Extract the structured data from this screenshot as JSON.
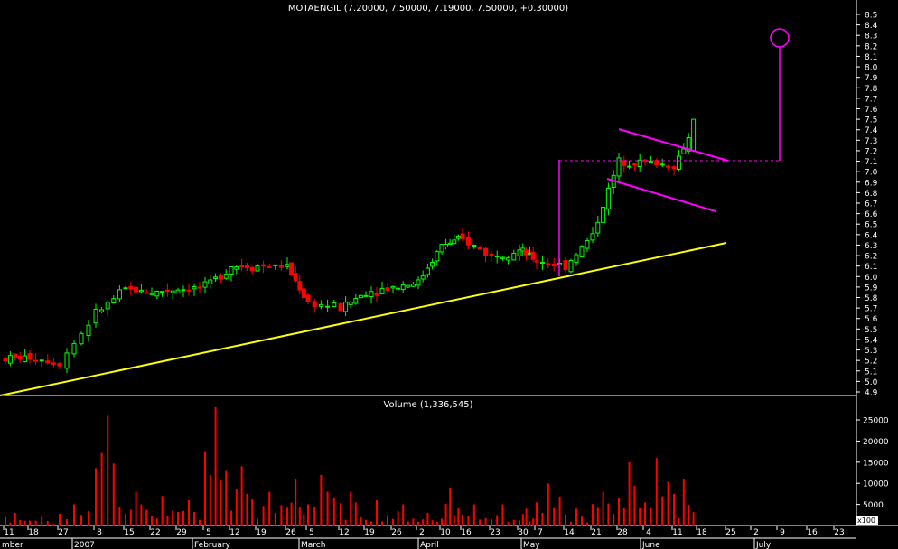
{
  "price_panel": {
    "title": "MOTAENGIL (7.20000, 7.50000, 7.19000, 7.50000, +0.30000)",
    "y_ticks": [
      "4.9",
      "5.0",
      "5.1",
      "5.2",
      "5.3",
      "5.4",
      "5.5",
      "5.6",
      "5.7",
      "5.8",
      "5.9",
      "6.0",
      "6.1",
      "6.2",
      "6.3",
      "6.4",
      "6.5",
      "6.6",
      "6.7",
      "6.8",
      "6.9",
      "7.0",
      "7.1",
      "7.2",
      "7.3",
      "7.4",
      "7.5",
      "7.6",
      "7.7",
      "7.8",
      "7.9",
      "8.0",
      "8.1",
      "8.2",
      "8.3",
      "8.4",
      "8.5"
    ]
  },
  "volume_panel": {
    "title": "Volume (1,336,545)",
    "y_ticks": [
      "5000",
      "10000",
      "15000",
      "20000",
      "25000"
    ],
    "scale_label": "x100"
  },
  "x_axis": {
    "day_ticks": [
      "11",
      "18",
      "27",
      "8",
      "15",
      "22",
      "29",
      "5",
      "12",
      "19",
      "26",
      "5",
      "12",
      "19",
      "26",
      "2",
      "10",
      "16",
      "23",
      "30",
      "7",
      "14",
      "21",
      "28",
      "4",
      "11",
      "18",
      "25",
      "2",
      "9",
      "16",
      "23"
    ],
    "month_labels": [
      "mber",
      "2007",
      "February",
      "March",
      "April",
      "May",
      "June",
      "July"
    ]
  },
  "colors": {
    "background": "#000000",
    "up_candle": "#00ff00",
    "down_candle": "#ff0000",
    "trendline": "#ffff00",
    "pattern": "#ff00ff",
    "volume_bar": "#ff0000",
    "axis": "#ffffff"
  },
  "chart_data": [
    {
      "type": "candlestick",
      "title": "MOTAENGIL (7.20000, 7.50000, 7.19000, 7.50000, +0.30000)",
      "ylim": [
        4.9,
        8.5
      ],
      "x": [
        "Dec-11",
        "Dec-18",
        "Dec-27",
        "Jan-08",
        "Jan-15",
        "Jan-22",
        "Jan-29",
        "Feb-05",
        "Feb-12",
        "Feb-19",
        "Feb-26",
        "Mar-05",
        "Mar-12",
        "Mar-19",
        "Mar-26",
        "Apr-02",
        "Apr-10",
        "Apr-16",
        "Apr-23",
        "Apr-30",
        "May-07",
        "May-14",
        "May-21",
        "May-28",
        "Jun-04",
        "Jun-11",
        "Jun-18"
      ],
      "approx_close": [
        5.22,
        5.23,
        5.18,
        5.65,
        5.88,
        5.85,
        5.88,
        5.9,
        6.1,
        6.1,
        6.1,
        5.75,
        5.7,
        5.85,
        5.9,
        5.95,
        6.3,
        6.35,
        6.2,
        6.25,
        6.15,
        6.1,
        6.4,
        7.1,
        7.1,
        7.05,
        7.5
      ],
      "last_candle": {
        "open": 7.2,
        "high": 7.5,
        "low": 7.19,
        "close": 7.5,
        "change": 0.3
      },
      "annotations": {
        "support_trendline": "yellow ascending line under the lows",
        "flag_channel": "magenta descending parallel lines",
        "flagpole_target": "magenta projection ending in a circle near 8.3"
      }
    },
    {
      "type": "bar",
      "title": "Volume (1,336,545)",
      "scale": "x100",
      "ylim": [
        0,
        28000
      ],
      "x": [
        "Dec-11",
        "Dec-18",
        "Dec-27",
        "Jan-08",
        "Jan-15",
        "Jan-22",
        "Jan-29",
        "Feb-05",
        "Feb-12",
        "Feb-19",
        "Feb-26",
        "Mar-05",
        "Mar-12",
        "Mar-19",
        "Mar-26",
        "Apr-02",
        "Apr-10",
        "Apr-16",
        "Apr-23",
        "Apr-30",
        "May-07",
        "May-14",
        "May-21",
        "May-28",
        "Jun-04",
        "Jun-11",
        "Jun-18"
      ],
      "approx_peaks": [
        3000,
        2000,
        5000,
        26000,
        8000,
        7000,
        6000,
        28000,
        14000,
        8000,
        11000,
        12000,
        8000,
        6000,
        5000,
        3000,
        9000,
        5000,
        5000,
        4000,
        10000,
        4000,
        8000,
        15000,
        16000,
        11000,
        13000
      ]
    }
  ]
}
